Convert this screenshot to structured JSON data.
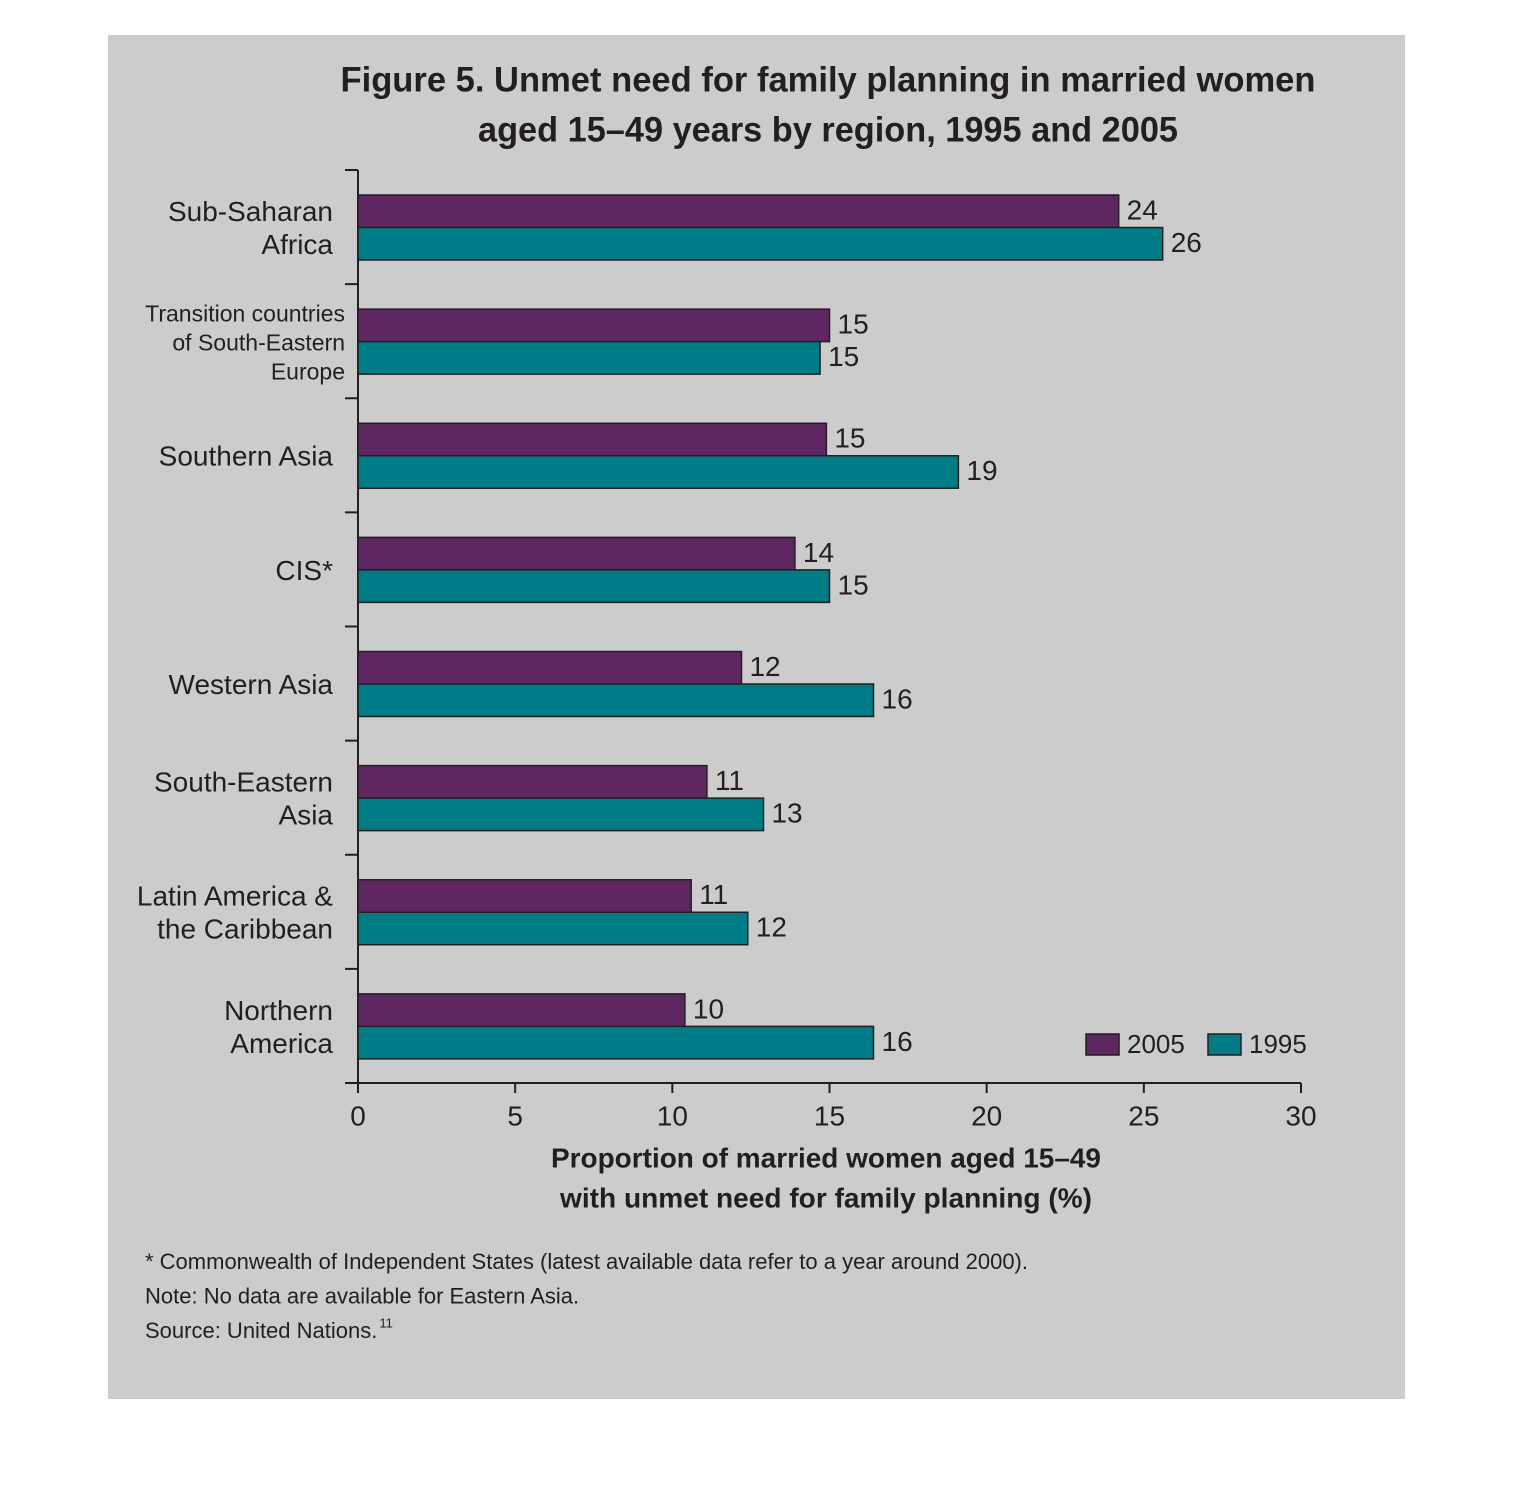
{
  "chart_data": {
    "type": "hbar",
    "title": [
      "Figure 5. Unmet need for family planning in married women",
      "aged 15–49 years by region, 1995 and 2005"
    ],
    "xlabel": [
      "Proportion of married women aged 15–49",
      "with unmet need for family planning (%)"
    ],
    "categories": [
      [
        "Sub-Saharan",
        "Africa"
      ],
      [
        "Transition countries",
        "of South-Eastern",
        "Europe"
      ],
      [
        "Southern Asia"
      ],
      [
        "CIS*"
      ],
      [
        "Western Asia"
      ],
      [
        "South-Eastern",
        "Asia"
      ],
      [
        "Latin America &",
        "the Caribbean"
      ],
      [
        "Northern",
        "America"
      ]
    ],
    "series": [
      {
        "name": "2005",
        "color": "#5e2761",
        "values": [
          24.2,
          15.0,
          14.9,
          13.9,
          12.2,
          11.1,
          10.6,
          10.4
        ],
        "value_labels": [
          "24",
          "15",
          "15",
          "14",
          "12",
          "11",
          "11",
          "10"
        ]
      },
      {
        "name": "1995",
        "color": "#007c87",
        "values": [
          25.6,
          14.7,
          19.1,
          15.0,
          16.4,
          12.9,
          12.4,
          16.4
        ],
        "value_labels": [
          "26",
          "15",
          "19",
          "15",
          "16",
          "13",
          "12",
          "16"
        ]
      }
    ],
    "xlim": [
      0,
      30
    ],
    "xticks": [
      0,
      5,
      10,
      15,
      20,
      25,
      30
    ],
    "legend": "lower right",
    "notes": [
      "* Commonwealth of Independent States (latest available data refer to a year around 2000).",
      "Note: No data are available for Eastern Asia.",
      "Source: United Nations."
    ],
    "source_ref": "11"
  }
}
